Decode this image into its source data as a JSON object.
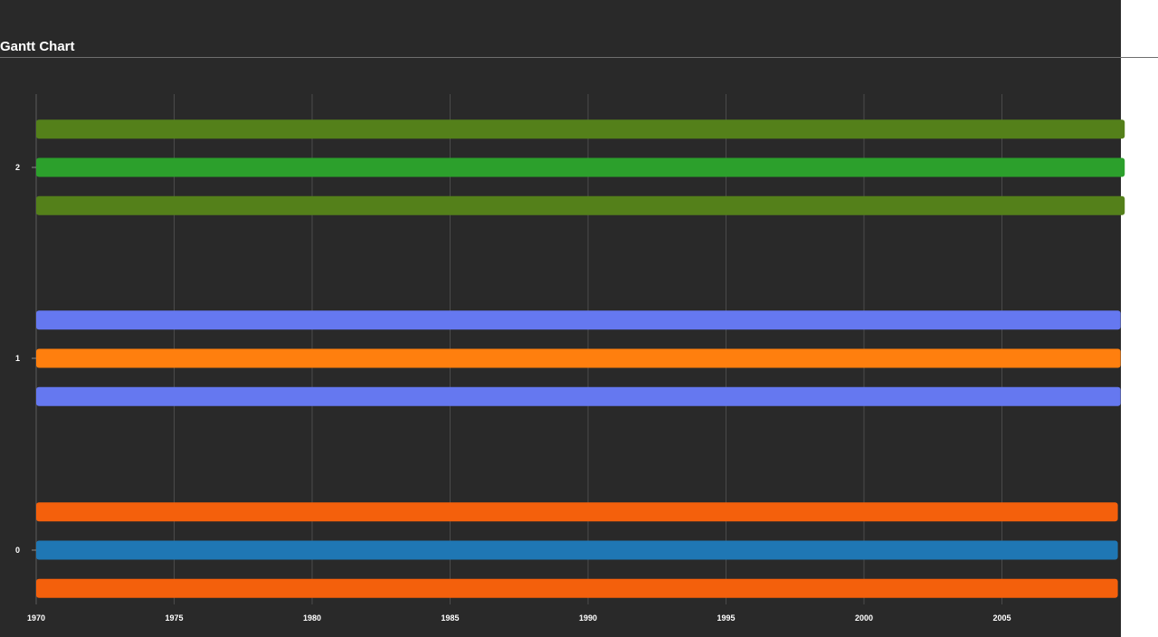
{
  "page": {
    "title": "Gantt Chart"
  },
  "chart_data": {
    "type": "gantt",
    "title": "Gantt Chart",
    "xlabel": "",
    "ylabel": "",
    "x_axis": {
      "type": "date",
      "min": 1970,
      "max": 2009.3,
      "ticks": [
        1970,
        1975,
        1980,
        1985,
        1990,
        1995,
        2000,
        2005
      ]
    },
    "y_axis": {
      "categories": [
        "0",
        "1",
        "2"
      ],
      "ticks": [
        "0",
        "1",
        "2"
      ]
    },
    "grid": {
      "vertical": true,
      "horizontal": false
    },
    "tasks": [
      {
        "row": 0,
        "offset": -0.2,
        "start": 1970,
        "end": 2009.2,
        "color": "#f4600c"
      },
      {
        "row": 0,
        "offset": 0.0,
        "start": 1970,
        "end": 2009.2,
        "color": "#1f77b4"
      },
      {
        "row": 0,
        "offset": 0.2,
        "start": 1970,
        "end": 2009.2,
        "color": "#f4600c"
      },
      {
        "row": 1,
        "offset": -0.2,
        "start": 1970,
        "end": 2009.3,
        "color": "#6578f0"
      },
      {
        "row": 1,
        "offset": 0.0,
        "start": 1970,
        "end": 2009.3,
        "color": "#ff7f0e"
      },
      {
        "row": 1,
        "offset": 0.2,
        "start": 1970,
        "end": 2009.3,
        "color": "#6578f0"
      },
      {
        "row": 2,
        "offset": -0.2,
        "start": 1970,
        "end": 2009.45,
        "color": "#54801a"
      },
      {
        "row": 2,
        "offset": 0.0,
        "start": 1970,
        "end": 2009.45,
        "color": "#2ca02c"
      },
      {
        "row": 2,
        "offset": 0.2,
        "start": 1970,
        "end": 2009.45,
        "color": "#54801a"
      }
    ],
    "colors": {
      "background": "#292929",
      "grid": "#4a4a4a",
      "text": "#ffffff"
    }
  }
}
